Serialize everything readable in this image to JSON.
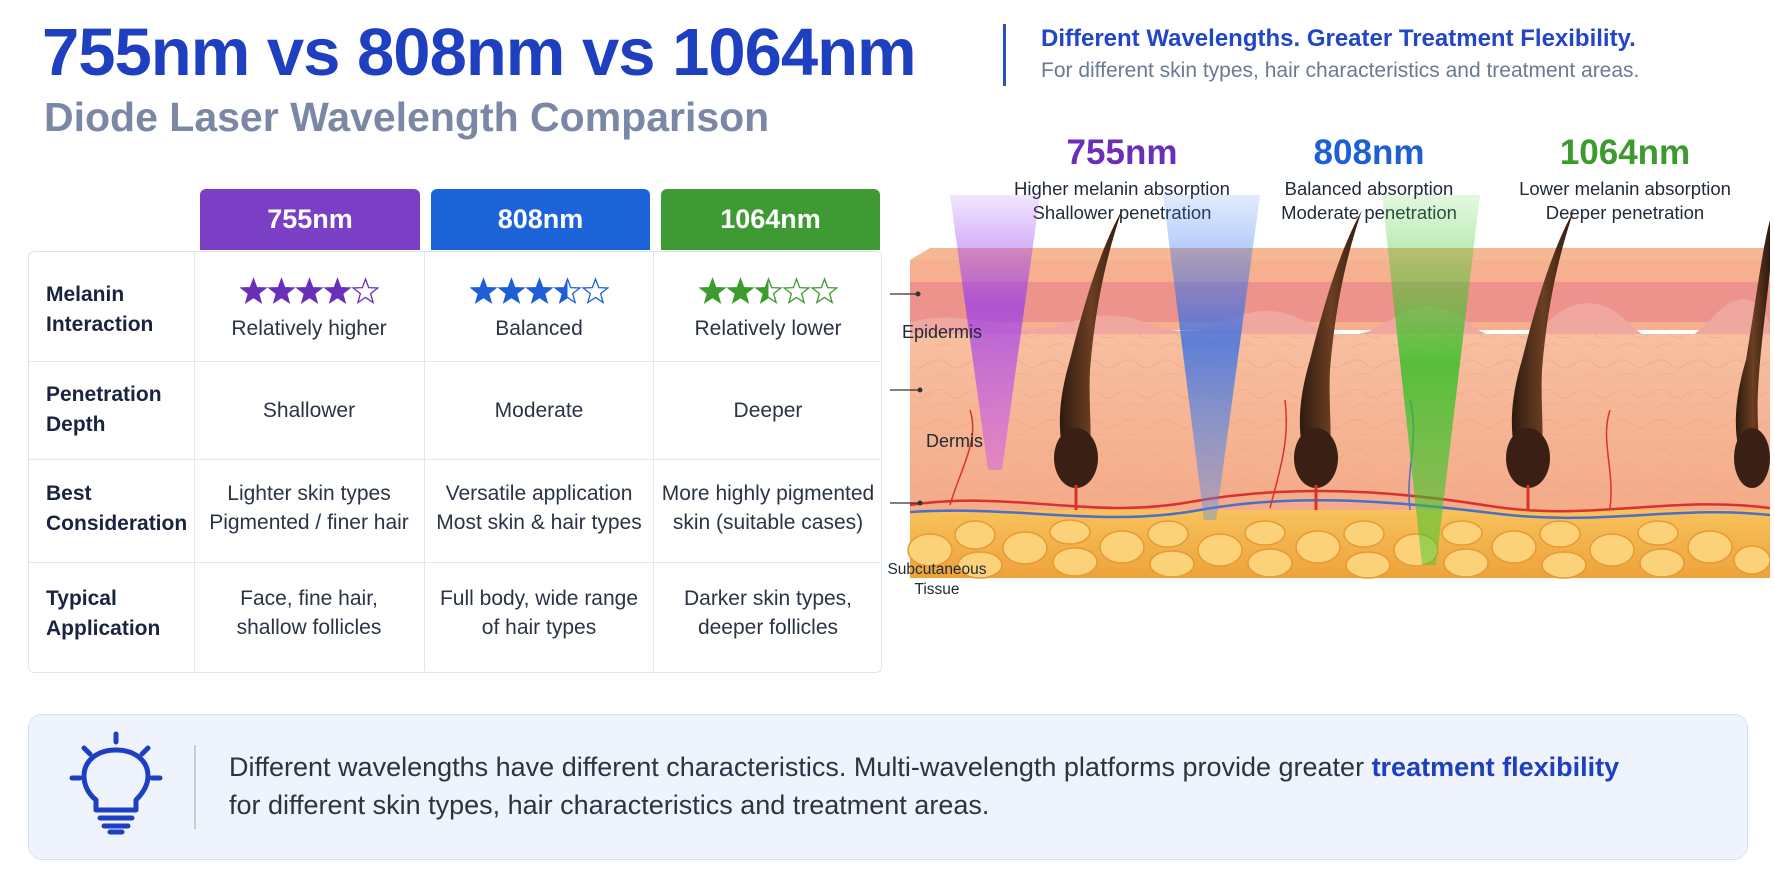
{
  "header": {
    "title": "755nm vs 808nm vs 1064nm",
    "subtitle": "Diode Laser Wavelength Comparison",
    "tagline": "Different Wavelengths. Greater Treatment Flexibility.",
    "tagline_sub": "For different skin types, hair characteristics and treatment areas."
  },
  "table": {
    "columns": [
      {
        "label": "755nm",
        "color": "#7a3fc4"
      },
      {
        "label": "808nm",
        "color": "#1d63d8"
      },
      {
        "label": "1064nm",
        "color": "#3f9a34"
      }
    ],
    "rows": [
      {
        "label_line1": "Melanin",
        "label_line2": "Interaction",
        "ratings": [
          4,
          3.5,
          2.5
        ],
        "rating_max": 5,
        "cells": [
          {
            "line1": "Relatively higher",
            "line2": ""
          },
          {
            "line1": "Balanced",
            "line2": ""
          },
          {
            "line1": "Relatively lower",
            "line2": ""
          }
        ]
      },
      {
        "label_line1": "Penetration",
        "label_line2": "Depth",
        "cells": [
          {
            "line1": "Shallower",
            "line2": ""
          },
          {
            "line1": "Moderate",
            "line2": ""
          },
          {
            "line1": "Deeper",
            "line2": ""
          }
        ]
      },
      {
        "label_line1": "Best",
        "label_line2": "Consideration",
        "cells": [
          {
            "line1": "Lighter skin types",
            "line2": "Pigmented / finer hair"
          },
          {
            "line1": "Versatile application",
            "line2": "Most skin & hair types"
          },
          {
            "line1": "More highly pigmented",
            "line2": "skin (suitable cases)"
          }
        ]
      },
      {
        "label_line1": "Typical",
        "label_line2": "Application",
        "cells": [
          {
            "line1": "Face, fine hair,",
            "line2": "shallow follicles"
          },
          {
            "line1": "Full body, wide range",
            "line2": "of hair types"
          },
          {
            "line1": "Darker skin types,",
            "line2": "deeper follicles"
          }
        ]
      }
    ]
  },
  "diagram": {
    "wavelengths": [
      {
        "label": "755nm",
        "desc1": "Higher melanin absorption",
        "desc2": "Shallower penetration",
        "color": "#6a2fb8"
      },
      {
        "label": "808nm",
        "desc1": "Balanced absorption",
        "desc2": "Moderate penetration",
        "color": "#1d5fd6"
      },
      {
        "label": "1064nm",
        "desc1": "Lower melanin absorption",
        "desc2": "Deeper penetration",
        "color": "#3d9a2e"
      }
    ],
    "layers": {
      "epidermis": "Epidermis",
      "dermis": "Dermis",
      "subcutaneous_line1": "Subcutaneous",
      "subcutaneous_line2": "Tissue"
    }
  },
  "callout": {
    "icon": "lightbulb-icon",
    "text_before": "Different wavelengths have different characteristics. Multi-wavelength platforms provide greater ",
    "text_emphasis": "treatment flexibility",
    "text_after": "for different skin types, hair characteristics and treatment areas."
  }
}
